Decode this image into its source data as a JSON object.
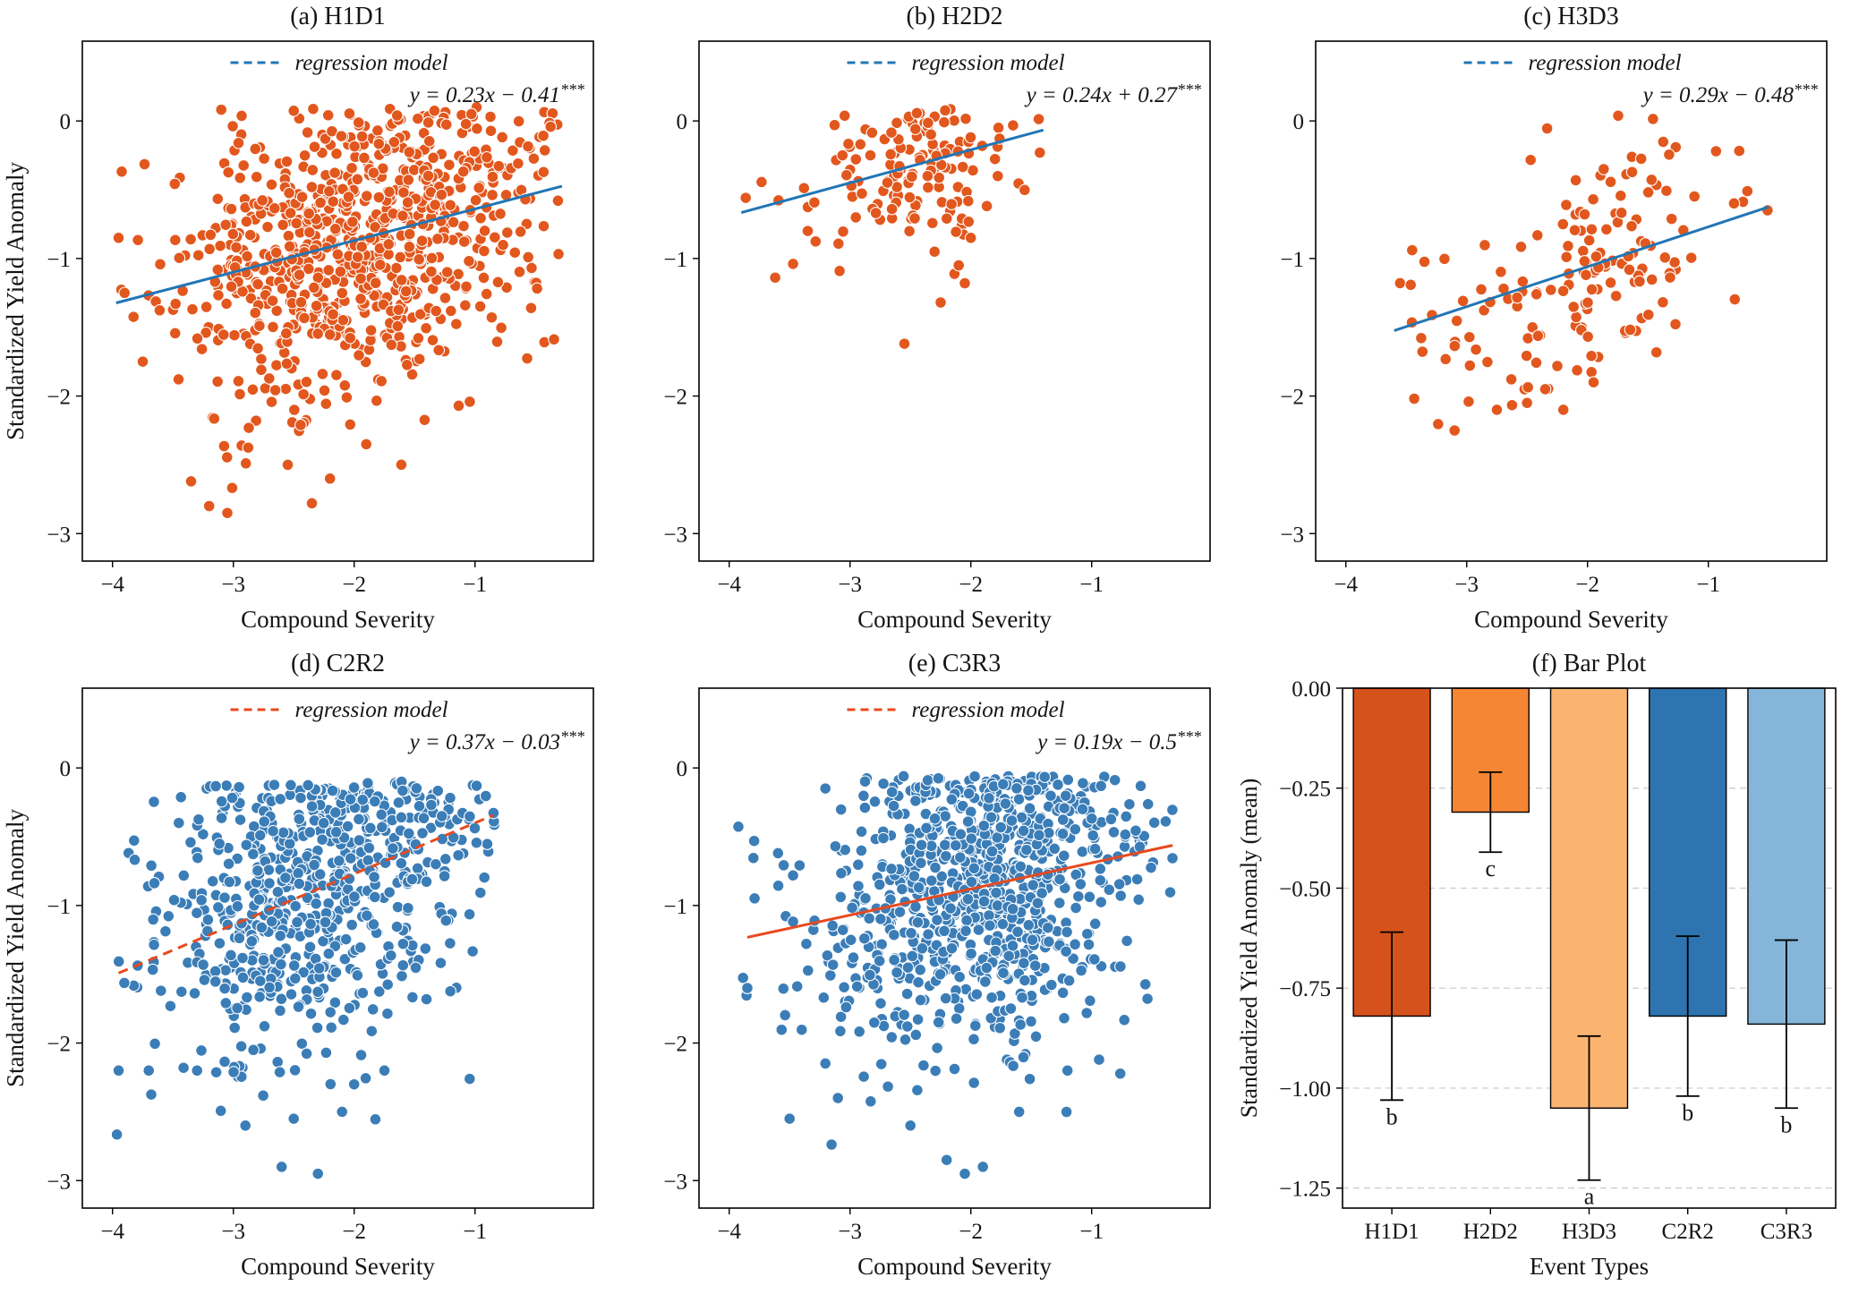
{
  "figure": {
    "background": "#ffffff",
    "rows": 2,
    "cols": 3,
    "shared_xlabel": "Compound Severity",
    "shared_ylabel": "Standardized Yield Anomaly"
  },
  "chart_data": [
    {
      "type": "scatter",
      "title": "(a) H1D1",
      "xlabel": "Compound Severity",
      "ylabel": "Standardized Yield Anomaly",
      "legend_label": "regression model",
      "equation": "y = 0.23x − 0.41",
      "stars": "***",
      "xlim": [
        -4.25,
        -0.02
      ],
      "ylim": [
        -3.2,
        0.58
      ],
      "xtick_vals": [
        -4,
        -3,
        -2,
        -1
      ],
      "xtick_labels": [
        "−4",
        "−3",
        "−2",
        "−1"
      ],
      "ytick_vals": [
        0,
        -1,
        -2,
        -3
      ],
      "ytick_labels": [
        "0",
        "−1",
        "−2",
        "−3"
      ],
      "regression": {
        "slope": 0.23,
        "intercept": -0.41,
        "x_start": -3.97,
        "x_end": -0.28,
        "color": "#2176b5",
        "dashed": false
      },
      "points": {
        "color": "#e2571d",
        "n": 820,
        "seed": 11,
        "x_mean": -2.0,
        "x_sd": 0.72,
        "x_min": -3.97,
        "x_max": -0.3,
        "resid_sd": 0.55,
        "y_max": 0.1,
        "y_min": -2.9
      },
      "extra_points": [
        [
          -3.35,
          -2.62
        ],
        [
          -3.2,
          -2.8
        ],
        [
          -3.05,
          -2.85
        ],
        [
          -2.35,
          -2.78
        ],
        [
          -2.55,
          -2.5
        ],
        [
          -2.2,
          -2.6
        ],
        [
          -1.9,
          -2.35
        ],
        [
          -3.75,
          -1.75
        ],
        [
          -3.9,
          -1.25
        ],
        [
          -3.95,
          -0.85
        ]
      ]
    },
    {
      "type": "scatter",
      "title": "(b) H2D2",
      "xlabel": "Compound Severity",
      "ylabel": "",
      "legend_label": "regression model",
      "equation": "y = 0.24x + 0.27",
      "stars": "***",
      "xlim": [
        -4.25,
        -0.02
      ],
      "ylim": [
        -3.2,
        0.58
      ],
      "xtick_vals": [
        -4,
        -3,
        -2,
        -1
      ],
      "xtick_labels": [
        "−4",
        "−3",
        "−2",
        "−1"
      ],
      "ytick_vals": [
        0,
        -1,
        -2,
        -3
      ],
      "ytick_labels": [
        "0",
        "−1",
        "−2",
        "−3"
      ],
      "regression": {
        "slope": 0.24,
        "intercept": 0.27,
        "x_start": -3.9,
        "x_end": -1.4,
        "color": "#2176b5",
        "dashed": false
      },
      "points": {
        "color": "#e2571d",
        "n": 140,
        "seed": 22,
        "x_mean": -2.55,
        "x_sd": 0.5,
        "x_min": -3.92,
        "x_max": -1.38,
        "resid_sd": 0.26,
        "y_max": 0.1,
        "y_min": -1.65
      },
      "extra_points": [
        [
          -2.55,
          -1.62
        ],
        [
          -2.25,
          -1.32
        ],
        [
          -2.05,
          -1.18
        ],
        [
          -2.3,
          -0.95
        ],
        [
          -3.35,
          -0.8
        ],
        [
          -2.0,
          -0.85
        ],
        [
          -2.1,
          -1.05
        ]
      ]
    },
    {
      "type": "scatter",
      "title": "(c) H3D3",
      "xlabel": "Compound Severity",
      "ylabel": "",
      "legend_label": "regression model",
      "equation": "y = 0.29x − 0.48",
      "stars": "***",
      "xlim": [
        -4.25,
        -0.02
      ],
      "ylim": [
        -3.2,
        0.58
      ],
      "xtick_vals": [
        -4,
        -3,
        -2,
        -1
      ],
      "xtick_labels": [
        "−4",
        "−3",
        "−2",
        "−1"
      ],
      "ytick_vals": [
        0,
        -1,
        -2,
        -3
      ],
      "ytick_labels": [
        "0",
        "−1",
        "−2",
        "−3"
      ],
      "regression": {
        "slope": 0.29,
        "intercept": -0.48,
        "x_start": -3.6,
        "x_end": -0.5,
        "color": "#2176b5",
        "dashed": false
      },
      "points": {
        "color": "#e2571d",
        "n": 160,
        "seed": 33,
        "x_mean": -2.05,
        "x_sd": 0.68,
        "x_min": -3.62,
        "x_max": -0.45,
        "resid_sd": 0.42,
        "y_max": 0.06,
        "y_min": -2.3
      },
      "extra_points": [
        [
          -3.1,
          -2.25
        ],
        [
          -2.75,
          -2.1
        ],
        [
          -2.5,
          -2.05
        ],
        [
          -2.2,
          -2.1
        ],
        [
          -1.95,
          -1.9
        ],
        [
          -2.35,
          -1.95
        ]
      ]
    },
    {
      "type": "scatter",
      "title": "(d) C2R2",
      "xlabel": "Compound Severity",
      "ylabel": "Standardized Yield Anomaly",
      "legend_label": "regression model",
      "equation": "y = 0.37x − 0.03",
      "stars": "***",
      "xlim": [
        -4.25,
        -0.02
      ],
      "ylim": [
        -3.2,
        0.58
      ],
      "xtick_vals": [
        -4,
        -3,
        -2,
        -1
      ],
      "xtick_labels": [
        "−4",
        "−3",
        "−2",
        "−1"
      ],
      "ytick_vals": [
        0,
        -1,
        -2,
        -3
      ],
      "ytick_labels": [
        "0",
        "−1",
        "−2",
        "−3"
      ],
      "regression": {
        "slope": 0.37,
        "intercept": -0.03,
        "x_start": -3.95,
        "x_end": -0.85,
        "color": "#e8491f",
        "dashed": true
      },
      "points": {
        "color": "#3b7db7",
        "n": 680,
        "seed": 44,
        "x_mean": -2.35,
        "x_sd": 0.68,
        "x_min": -3.97,
        "x_max": -0.82,
        "resid_sd": 0.58,
        "y_max": -0.1,
        "y_min": -2.95
      },
      "extra_points": [
        [
          -2.6,
          -2.9
        ],
        [
          -2.3,
          -2.95
        ],
        [
          -2.9,
          -2.6
        ],
        [
          -2.5,
          -2.55
        ],
        [
          -2.1,
          -2.5
        ],
        [
          -3.3,
          -2.2
        ],
        [
          -3.7,
          -2.2
        ],
        [
          -3.95,
          -2.2
        ],
        [
          -2.0,
          -2.3
        ],
        [
          -1.75,
          -2.2
        ]
      ]
    },
    {
      "type": "scatter",
      "title": "(e) C3R3",
      "xlabel": "Compound Severity",
      "ylabel": "",
      "legend_label": "regression model",
      "equation": "y = 0.19x − 0.5",
      "stars": "***",
      "xlim": [
        -4.25,
        -0.02
      ],
      "ylim": [
        -3.2,
        0.58
      ],
      "xtick_vals": [
        -4,
        -3,
        -2,
        -1
      ],
      "xtick_labels": [
        "−4",
        "−3",
        "−2",
        "−1"
      ],
      "ytick_vals": [
        0,
        -1,
        -2,
        -3
      ],
      "ytick_labels": [
        "0",
        "−1",
        "−2",
        "−3"
      ],
      "regression": {
        "slope": 0.19,
        "intercept": -0.5,
        "x_start": -3.85,
        "x_end": -0.33,
        "color": "#e8491f",
        "dashed": false
      },
      "points": {
        "color": "#3b7db7",
        "n": 880,
        "seed": 55,
        "x_mean": -1.95,
        "x_sd": 0.66,
        "x_min": -3.97,
        "x_max": -0.32,
        "resid_sd": 0.58,
        "y_max": -0.06,
        "y_min": -3.0
      },
      "extra_points": [
        [
          -2.05,
          -2.95
        ],
        [
          -1.9,
          -2.9
        ],
        [
          -2.2,
          -2.85
        ],
        [
          -2.5,
          -2.6
        ],
        [
          -1.6,
          -2.5
        ],
        [
          -3.1,
          -2.4
        ],
        [
          -3.5,
          -2.55
        ],
        [
          -1.2,
          -2.2
        ],
        [
          -3.85,
          -1.6
        ]
      ]
    },
    {
      "type": "bar",
      "title": "(f) Bar Plot",
      "xlabel": "Event Types",
      "ylabel": "Standardized Yield Anomaly (mean)",
      "categories": [
        "H1D1",
        "H2D2",
        "H3D3",
        "C2R2",
        "C3R3"
      ],
      "values": [
        -0.82,
        -0.31,
        -1.05,
        -0.82,
        -0.84
      ],
      "errors": [
        0.21,
        0.1,
        0.18,
        0.2,
        0.21
      ],
      "letters": [
        "b",
        "c",
        "a",
        "b",
        "b"
      ],
      "colors": [
        "#d6521c",
        "#f58634",
        "#fbb470",
        "#2d74b0",
        "#85b6d9"
      ],
      "bar_edge_color": "#000000",
      "ylim": [
        -1.3,
        0
      ],
      "ytick_vals": [
        0,
        -0.25,
        -0.5,
        -0.75,
        -1,
        -1.25
      ],
      "ytick_labels": [
        "0.00",
        "−0.25",
        "−0.50",
        "−0.75",
        "−1.00",
        "−1.25"
      ],
      "grid": true,
      "grid_color": "#c9c9c9"
    }
  ]
}
